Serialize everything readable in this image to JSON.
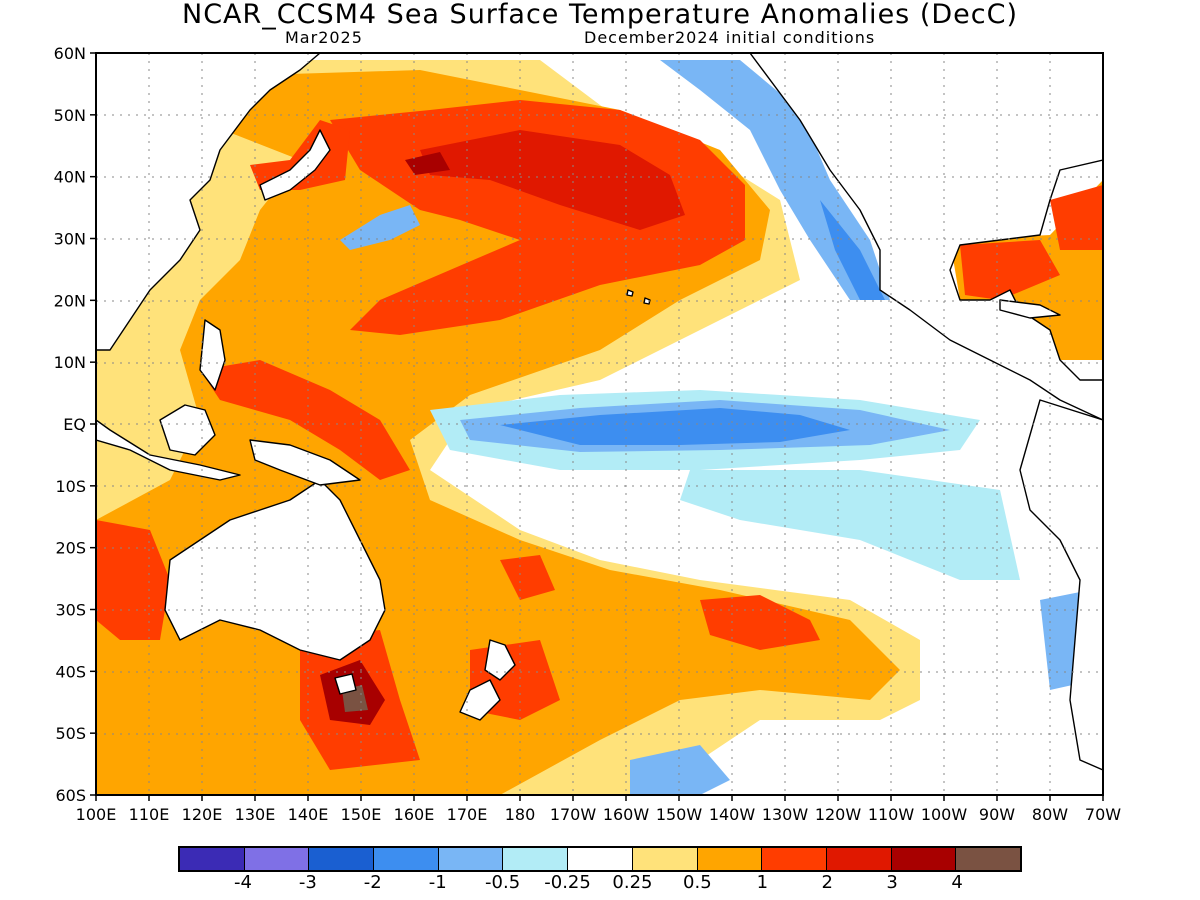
{
  "title": "NCAR_CCSM4 Sea Surface Temperature Anomalies (DecC)",
  "subtitle_left": "Mar2025",
  "subtitle_right": "December2024 initial conditions",
  "lat_labels": [
    "60N",
    "50N",
    "40N",
    "30N",
    "20N",
    "10N",
    "EQ",
    "10S",
    "20S",
    "30S",
    "40S",
    "50S",
    "60S"
  ],
  "lon_labels": [
    "100E",
    "110E",
    "120E",
    "130E",
    "140E",
    "150E",
    "160E",
    "170E",
    "180",
    "170W",
    "160W",
    "150W",
    "140W",
    "130W",
    "120W",
    "110W",
    "100W",
    "90W",
    "80W",
    "70W"
  ],
  "colorbar": {
    "colors": [
      "#3b2bb5",
      "#7f70e6",
      "#1a5fd1",
      "#3d8ef0",
      "#79b6f5",
      "#b2ecf6",
      "#ffffff",
      "#ffe27a",
      "#ffa500",
      "#ff3d00",
      "#e01800",
      "#a80000",
      "#7a5242"
    ],
    "labels": [
      "-4",
      "-3",
      "-2",
      "-1",
      "-0.5",
      "-0.25",
      "0.25",
      "0.5",
      "1",
      "2",
      "3",
      "4"
    ]
  },
  "colors": {
    "land": "#ffffff",
    "coast": "#000000",
    "grid": "#888888"
  }
}
